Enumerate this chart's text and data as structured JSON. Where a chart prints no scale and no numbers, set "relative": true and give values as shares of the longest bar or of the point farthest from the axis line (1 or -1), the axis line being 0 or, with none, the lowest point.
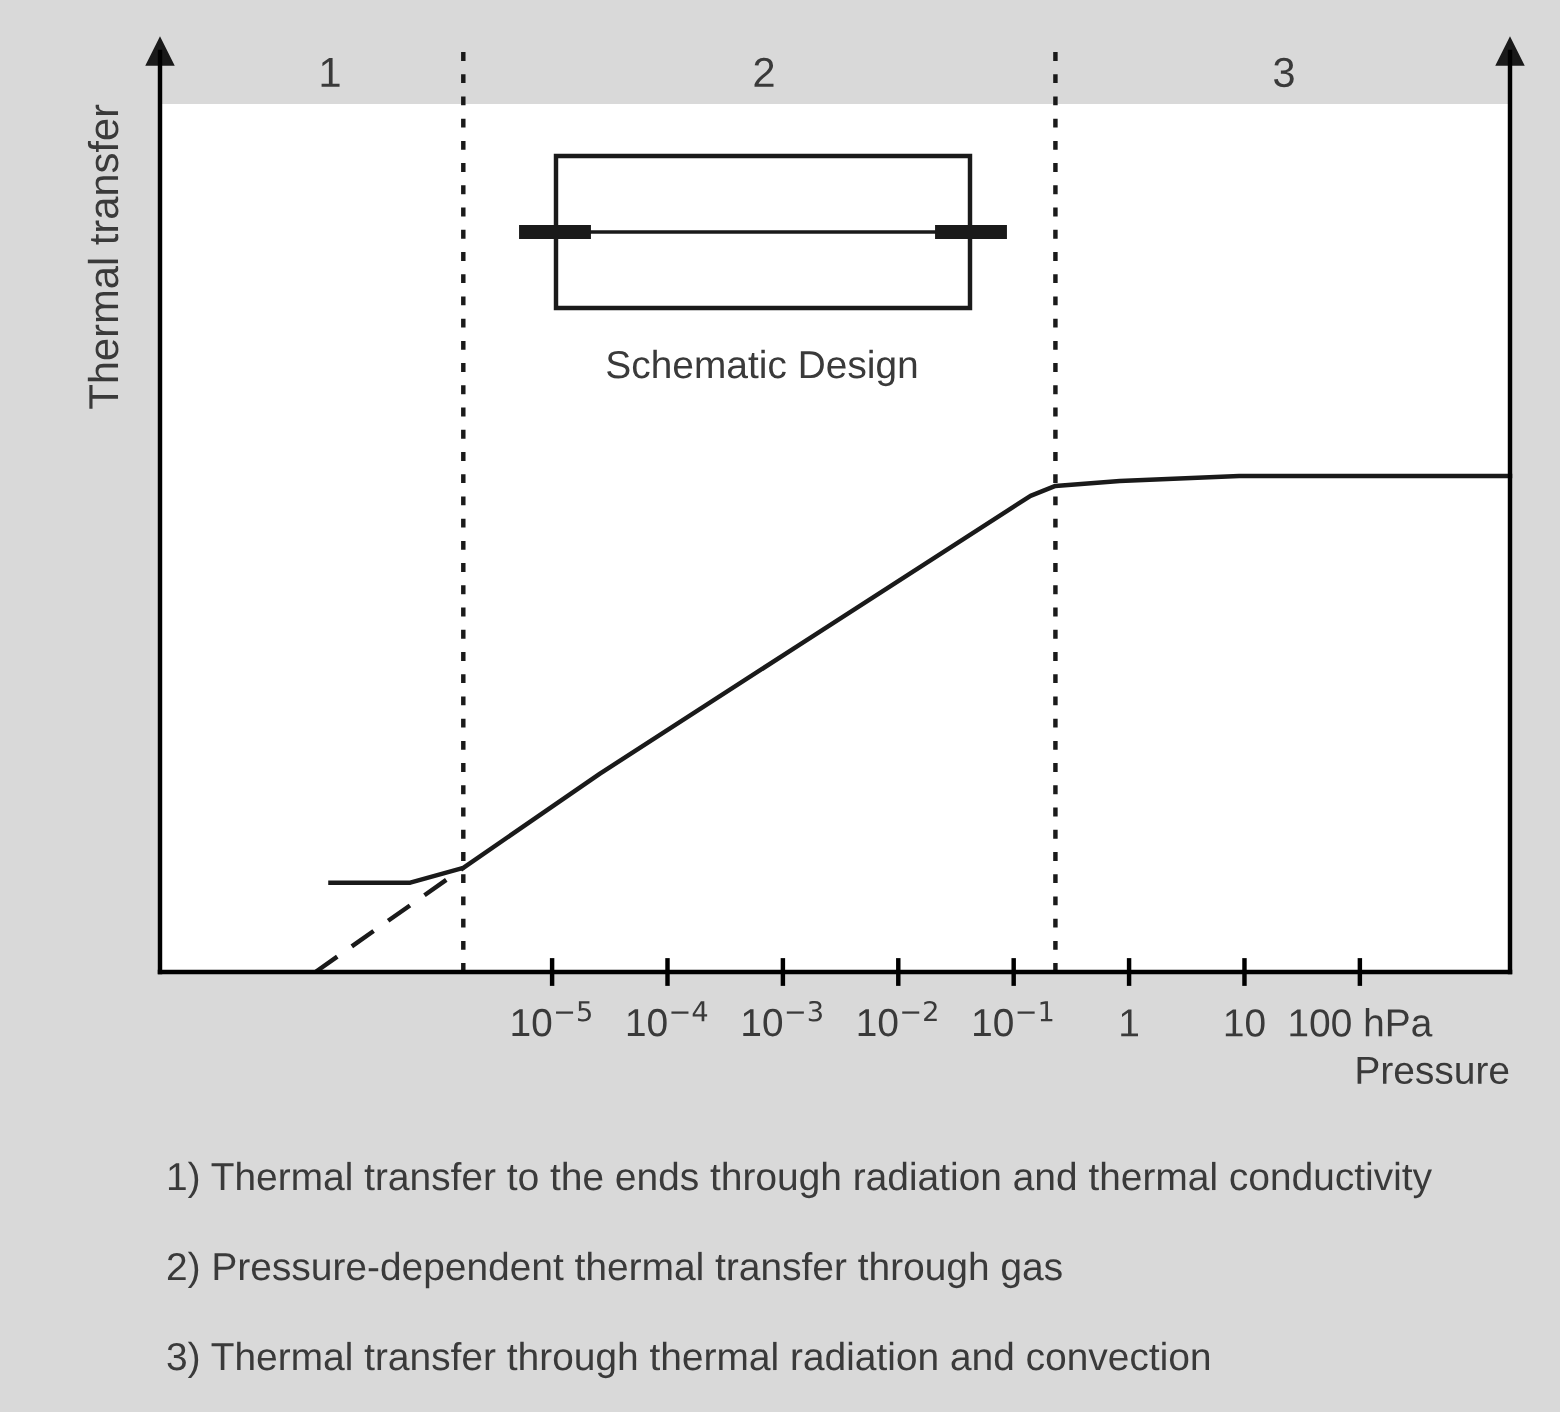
{
  "chart_data": {
    "type": "line",
    "relative": true,
    "log": "x",
    "ylabel": "Thermal transfer",
    "xlabel": "Pressure",
    "xlim": [
      4e-09,
      2000
    ],
    "xticks": [
      {
        "value": 1e-05,
        "label": "10$^{−5}$"
      },
      {
        "value": 0.0001,
        "label": "10$^{−4}$"
      },
      {
        "value": 0.001,
        "label": "10$^{−3}$"
      },
      {
        "value": 0.01,
        "label": "10$^{−2}$"
      },
      {
        "value": 0.1,
        "label": "10$^{−1}$"
      },
      1,
      10,
      {
        "value": 100,
        "label": "100 hPa"
      }
    ],
    "tick_labels": "x",
    "grid": false,
    "marker": "none",
    "series": [
      {
        "color": "#1a1a1a",
        "line_style": "solid",
        "x": [
          1.2e-07,
          5.9e-07,
          1.7e-06,
          2.6e-05,
          0.0014,
          0.14,
          0.23,
          0.83,
          9,
          2000
        ],
        "values": [
          0.18,
          0.18,
          0.21,
          0.4,
          0.66,
          0.96,
          0.98,
          0.99,
          1,
          1
        ]
      },
      {
        "color": "#1a1a1a",
        "line_style": "dashed",
        "x": [
          8.9e-08,
          1.7e-06
        ],
        "values": [
          0,
          0.21
        ]
      }
    ],
    "ref_lines": [
      {
        "axis": "x",
        "value": 1.7e-06,
        "color": "#1a1a1a",
        "line_style": "dotted"
      },
      {
        "axis": "x",
        "value": 0.23,
        "color": "#1a1a1a",
        "line_style": "dotted"
      }
    ],
    "annotations": [
      "1",
      "2",
      "3",
      "Schematic Design",
      "1) Thermal transfer to the ends through radiation and thermal conductivity",
      "2) Pressure-dependent thermal transfer through gas",
      "3) Thermal transfer through thermal radiation and convection"
    ]
  }
}
